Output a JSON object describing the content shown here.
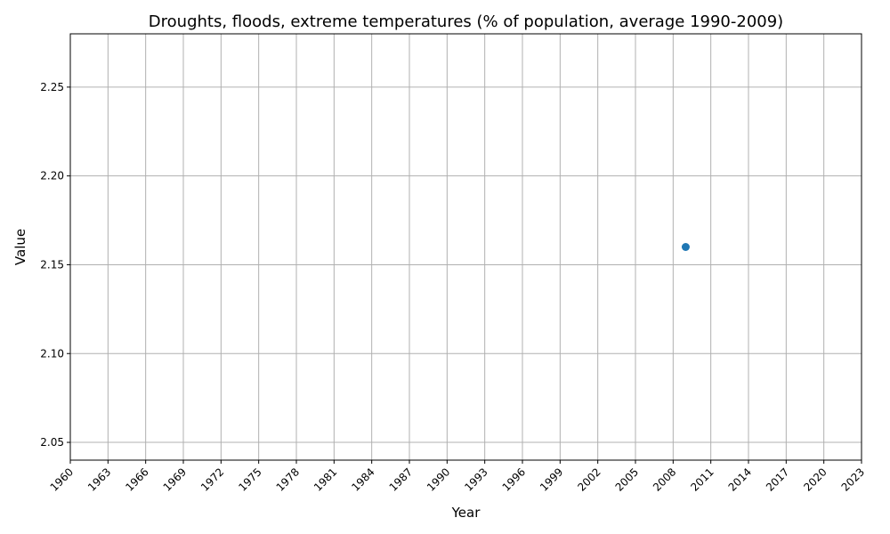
{
  "chart_data": {
    "type": "scatter",
    "title": "Droughts, floods, extreme temperatures (% of population, average 1990-2009)",
    "xlabel": "Year",
    "ylabel": "Value",
    "xlim": [
      1960,
      2023
    ],
    "ylim": [
      2.04,
      2.28
    ],
    "x_ticks": [
      1960,
      1963,
      1966,
      1969,
      1972,
      1975,
      1978,
      1981,
      1984,
      1987,
      1990,
      1993,
      1996,
      1999,
      2002,
      2005,
      2008,
      2011,
      2014,
      2017,
      2020,
      2023
    ],
    "y_ticks": [
      2.05,
      2.1,
      2.15,
      2.2,
      2.25
    ],
    "y_tick_labels": [
      "2.05",
      "2.10",
      "2.15",
      "2.20",
      "2.25"
    ],
    "grid": true,
    "series": [
      {
        "color": "#1f77b4",
        "points": [
          {
            "x": 2009,
            "y": 2.16
          }
        ]
      }
    ]
  }
}
